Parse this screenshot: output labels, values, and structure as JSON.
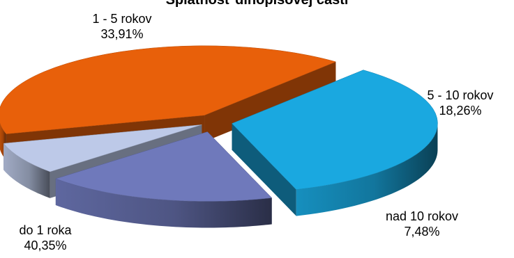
{
  "chart_data": {
    "type": "pie",
    "title": "Splatnosť dlhopisovej časti",
    "slices": [
      {
        "label": "do 1 roka",
        "value": 40.35,
        "value_text": "40,35%",
        "color": "#e8600a"
      },
      {
        "label": "1 - 5 rokov",
        "value": 33.91,
        "value_text": "33,91%",
        "color": "#1aa8e0"
      },
      {
        "label": "5 - 10 rokov",
        "value": 18.26,
        "value_text": "18,26%",
        "color": "#6f79bb"
      },
      {
        "label": "nad 10 rokov",
        "value": 7.48,
        "value_text": "7,48%",
        "color": "#bdc9e8"
      }
    ],
    "style": "3d-exploded",
    "legend": "none"
  }
}
